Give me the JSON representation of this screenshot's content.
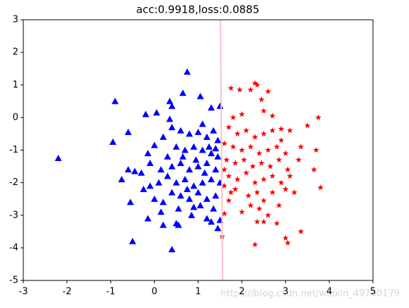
{
  "chart_data": {
    "type": "scatter",
    "title": "acc:0.9918,loss:0.0885",
    "xlim": [
      -3,
      5
    ],
    "ylim": [
      -5,
      3
    ],
    "xticks": [
      -3,
      -2,
      -1,
      0,
      1,
      2,
      3,
      4,
      5
    ],
    "yticks": [
      -5,
      -4,
      -3,
      -2,
      -1,
      0,
      1,
      2,
      3
    ],
    "boundary": {
      "color": "pink",
      "x": [
        1.51,
        1.56
      ],
      "y": [
        3,
        -5
      ]
    },
    "series": [
      {
        "color": "blue",
        "marker": "triangle",
        "x": [
          -2.2,
          -0.9,
          -0.95,
          -0.6,
          -0.55,
          -0.5,
          0.4,
          0.75,
          0.65,
          0.35,
          0.4,
          1.05,
          -0.2,
          0.05,
          0.35,
          1.3,
          1.5,
          -0.75,
          -0.6,
          -0.45,
          -0.15,
          0.0,
          -0.1,
          -0.1,
          -0.25,
          0.0,
          0.1,
          0.15,
          -0.15,
          0.2,
          0.5,
          0.55,
          0.85,
          0.9,
          1.2,
          1.3,
          1.5,
          1.45,
          0.3,
          0.2,
          0.4,
          0.6,
          0.8,
          1.0,
          1.1,
          1.2,
          1.35,
          1.45,
          0.5,
          0.7,
          0.9,
          1.1,
          1.3,
          1.45,
          0.4,
          0.6,
          0.8,
          1.0,
          1.2,
          1.4,
          0.3,
          0.5,
          0.7,
          0.9,
          1.1,
          1.3,
          1.5,
          0.4,
          0.6,
          0.8,
          1.0,
          1.2,
          1.4,
          0.55,
          0.75,
          1.05,
          1.35,
          0.15,
          0.2,
          -0.3,
          1.25,
          0.95,
          1.4,
          0.65,
          1.15
        ],
        "y": [
          -1.25,
          0.5,
          -0.75,
          -0.45,
          -2.6,
          -3.8,
          -4.05,
          1.4,
          0.75,
          0.5,
          0.35,
          0.65,
          0.1,
          0.15,
          -0.05,
          0.3,
          0.35,
          -1.9,
          -1.6,
          -1.65,
          -1.1,
          -0.85,
          -1.4,
          -2.1,
          -2.2,
          -2.5,
          -2.0,
          -2.9,
          -3.1,
          -3.3,
          -3.25,
          -3.3,
          -3.0,
          -2.75,
          -3.1,
          -3.2,
          -3.15,
          -3.4,
          -1.2,
          -0.6,
          -0.3,
          -0.4,
          -0.5,
          -0.45,
          -0.2,
          -0.6,
          -0.4,
          -0.7,
          -0.9,
          -1.0,
          -0.9,
          -1.0,
          -1.1,
          -1.2,
          -1.5,
          -1.4,
          -1.6,
          -1.5,
          -1.4,
          -1.6,
          -1.8,
          -2.0,
          -1.9,
          -2.1,
          -2.0,
          -1.9,
          -2.0,
          -2.3,
          -2.4,
          -2.5,
          -2.3,
          -2.5,
          -2.4,
          -2.8,
          -2.2,
          -2.7,
          -2.8,
          -1.6,
          -2.6,
          -1.7,
          -0.9,
          -1.3,
          -0.95,
          -1.2,
          -1.7
        ]
      },
      {
        "color": "red",
        "marker": "star",
        "x": [
          2.3,
          2.35,
          1.95,
          2.2,
          2.6,
          1.75,
          3.75,
          3.5,
          3.7,
          3.35,
          3.35,
          3.0,
          3.05,
          2.3,
          1.55,
          3.65,
          3.8,
          2.85,
          2.5,
          1.85,
          1.7,
          2.0,
          2.35,
          2.5,
          2.6,
          2.8,
          1.6,
          1.8,
          2.0,
          2.5,
          2.7,
          2.45,
          1.7,
          1.9,
          2.1,
          2.3,
          2.5,
          2.7,
          2.9,
          3.1,
          1.6,
          1.8,
          2.0,
          2.2,
          2.4,
          2.6,
          2.8,
          3.0,
          1.65,
          1.85,
          2.05,
          2.25,
          2.45,
          2.65,
          2.85,
          3.05,
          1.7,
          1.9,
          2.1,
          2.3,
          2.5,
          2.7,
          2.9,
          3.1,
          1.75,
          2.15,
          2.35,
          2.7,
          3.0,
          2.2,
          2.4,
          3.2,
          1.6,
          1.6,
          2.9,
          3.3
        ],
        "y": [
          1.05,
          1.0,
          0.85,
          0.85,
          0.8,
          0.9,
          0.0,
          -0.25,
          -1.0,
          -0.9,
          -3.5,
          -3.7,
          -3.85,
          -3.9,
          -3.65,
          -1.6,
          -2.15,
          -2.7,
          -2.55,
          -2.2,
          -2.55,
          -2.9,
          -3.2,
          -3.2,
          -3.0,
          -3.25,
          -2.95,
          0.0,
          0.1,
          0.2,
          0.05,
          0.55,
          -0.3,
          -0.5,
          -0.4,
          -0.6,
          -0.5,
          -0.4,
          -0.35,
          -0.4,
          -0.8,
          -0.9,
          -1.0,
          -0.9,
          -1.1,
          -1.0,
          -0.9,
          -1.1,
          -1.3,
          -1.4,
          -1.3,
          -1.5,
          -1.4,
          -1.5,
          -1.3,
          -1.6,
          -1.8,
          -1.9,
          -1.7,
          -2.0,
          -1.9,
          -1.8,
          -2.0,
          -1.8,
          -2.3,
          -2.4,
          -2.3,
          -2.3,
          -2.2,
          -2.7,
          -2.8,
          -2.3,
          -1.6,
          -2.1,
          -0.7,
          -1.3
        ]
      }
    ]
  },
  "watermark": "https://blog.csdn.net/weixin_49790179"
}
